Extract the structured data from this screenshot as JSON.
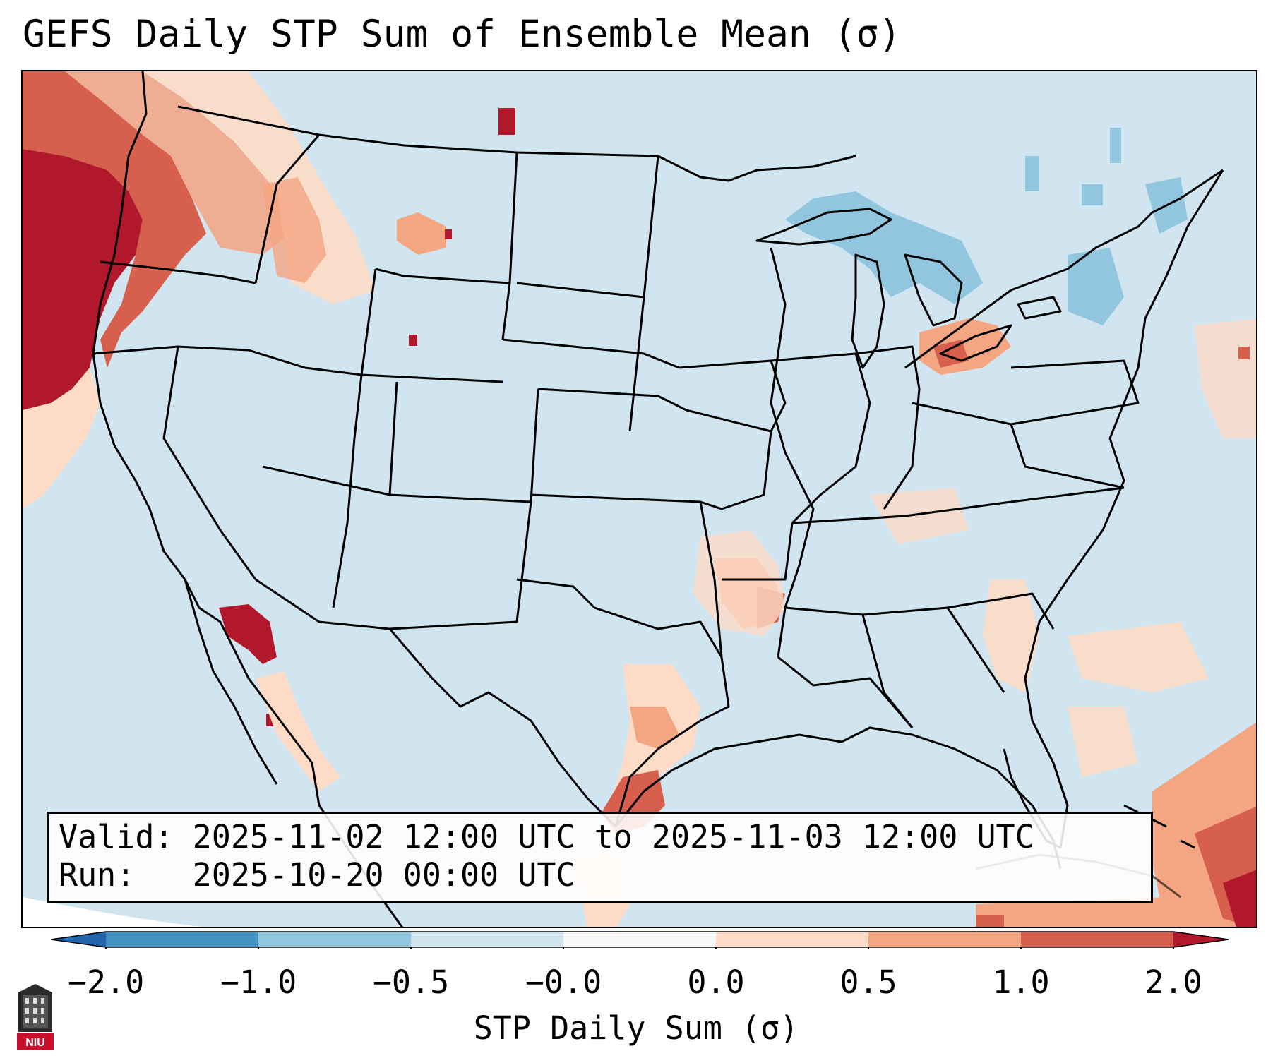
{
  "title": "GEFS Daily STP Sum of Ensemble Mean (σ)",
  "map": {
    "region": "Contiguous United States",
    "field": "STP daily sum (σ)",
    "colors": {
      "ocean_land_bg": "#d1e5f0",
      "cat_-2_-1": "#4393c3",
      "cat_-1_-0.5": "#92c5de",
      "cat_-0.5_0": "#d1e5f0",
      "cat_0_0.5": "#fddbc7",
      "cat_0.5_1": "#f4a582",
      "cat_1_2": "#d6604d",
      "cat_gt_2": "#b2182b"
    },
    "notable_regions": [
      {
        "name": "Pacific Northwest coast",
        "category": ">2.0"
      },
      {
        "name": "Gulf of California",
        "category": ">2.0"
      },
      {
        "name": "Arkansas / lower Mississippi valley",
        "category": "0.5 to 1.0"
      },
      {
        "name": "South Texas coast",
        "category": "1.0 to 2.0"
      },
      {
        "name": "Lake Erie / northern Ohio",
        "category": "1.0 to 2.0"
      },
      {
        "name": "Caribbean / Bahamas",
        "category": ">2.0"
      },
      {
        "name": "Great Lakes",
        "category": "-1.0 to -0.5"
      }
    ]
  },
  "info": {
    "valid_label": "Valid:",
    "valid_value": "2025-11-02 12:00 UTC to 2025-11-03 12:00 UTC",
    "run_label": "Run:",
    "run_value": "2025-10-20 00:00 UTC"
  },
  "colorbar": {
    "label": "STP Daily Sum (σ)",
    "ticks": [
      "−2.0",
      "−1.0",
      "−0.5",
      "−0.0",
      "0.0",
      "0.5",
      "1.0",
      "2.0"
    ],
    "colors": [
      "#2166ac",
      "#4393c3",
      "#92c5de",
      "#d1e5f0",
      "#fddbc7",
      "#f4a582",
      "#d6604d",
      "#b2182b"
    ]
  },
  "logo": {
    "text": "NIU",
    "color": "#c8102e"
  }
}
